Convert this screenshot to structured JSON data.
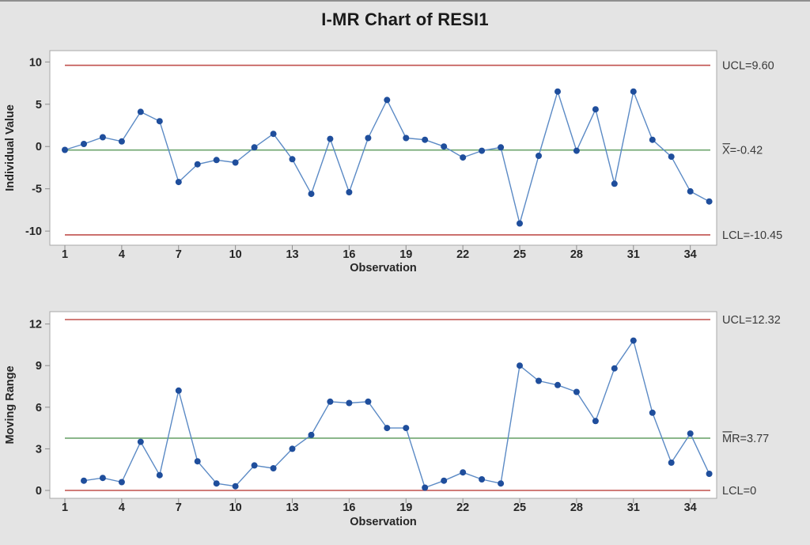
{
  "title": "I-MR Chart of RESI1",
  "colors": {
    "background": "#e4e4e4",
    "plot_background": "#ffffff",
    "plot_border": "#a8a8a8",
    "tick": "#8c8c8c",
    "text": "#262626",
    "annotation_text": "#3a3a3a",
    "control_limit_red": "#c0504d",
    "center_line_green": "#6ea56e",
    "series_line_blue": "#5b8ac5",
    "marker_blue": "#1f4e9c"
  },
  "chart_data": [
    {
      "type": "line",
      "name": "individuals",
      "ylabel": "Individual Value",
      "xlabel": "Observation",
      "ylim": [
        -11.67,
        11.34
      ],
      "yticks": [
        10,
        5,
        0,
        -5,
        -10
      ],
      "xticks": [
        1,
        4,
        7,
        10,
        13,
        16,
        19,
        22,
        25,
        28,
        31,
        34
      ],
      "x": [
        1,
        2,
        3,
        4,
        5,
        6,
        7,
        8,
        9,
        10,
        11,
        12,
        13,
        14,
        15,
        16,
        17,
        18,
        19,
        20,
        21,
        22,
        23,
        24,
        25,
        26,
        27,
        28,
        29,
        30,
        31,
        32,
        33,
        34,
        35
      ],
      "values": [
        -0.4,
        0.3,
        1.1,
        0.6,
        4.1,
        3.0,
        -4.2,
        -2.1,
        -1.6,
        -1.9,
        -0.1,
        1.5,
        -1.5,
        -5.6,
        0.9,
        -5.4,
        1.0,
        5.5,
        1.0,
        0.8,
        0.0,
        -1.3,
        -0.5,
        -0.1,
        -9.1,
        -1.1,
        6.5,
        -0.5,
        4.4,
        -4.4,
        6.5,
        0.8,
        -1.2,
        -5.3,
        -6.5
      ],
      "limits": [
        {
          "kind": "ucl",
          "value": 9.6,
          "label_bar": "",
          "label_text": "UCL=9.60"
        },
        {
          "kind": "center",
          "value": -0.42,
          "label_bar": "X",
          "label_text": "=-0.42"
        },
        {
          "kind": "lcl",
          "value": -10.45,
          "label_bar": "",
          "label_text": "LCL=-10.45"
        }
      ]
    },
    {
      "type": "line",
      "name": "moving-range",
      "ylabel": "Moving Range",
      "xlabel": "Observation",
      "ylim": [
        -0.57,
        12.89
      ],
      "yticks": [
        12,
        9,
        6,
        3,
        0
      ],
      "xticks": [
        1,
        4,
        7,
        10,
        13,
        16,
        19,
        22,
        25,
        28,
        31,
        34
      ],
      "x": [
        1,
        2,
        3,
        4,
        5,
        6,
        7,
        8,
        9,
        10,
        11,
        12,
        13,
        14,
        15,
        16,
        17,
        18,
        19,
        20,
        21,
        22,
        23,
        24,
        25,
        26,
        27,
        28,
        29,
        30,
        31,
        32,
        33,
        34,
        35
      ],
      "values": [
        null,
        0.7,
        0.9,
        0.6,
        3.5,
        1.1,
        7.2,
        2.1,
        0.5,
        0.3,
        1.8,
        1.6,
        3.0,
        4.0,
        6.4,
        6.3,
        6.4,
        4.5,
        4.5,
        0.2,
        0.7,
        1.3,
        0.8,
        0.5,
        9.0,
        7.9,
        7.6,
        7.1,
        5.0,
        8.8,
        10.8,
        5.6,
        2.0,
        4.1,
        1.2
      ],
      "limits": [
        {
          "kind": "ucl",
          "value": 12.32,
          "label_bar": "",
          "label_text": "UCL=12.32"
        },
        {
          "kind": "center",
          "value": 3.77,
          "label_bar": "M",
          "label_text": "R=3.77"
        },
        {
          "kind": "lcl",
          "value": 0,
          "label_bar": "",
          "label_text": "LCL=0"
        }
      ]
    }
  ]
}
